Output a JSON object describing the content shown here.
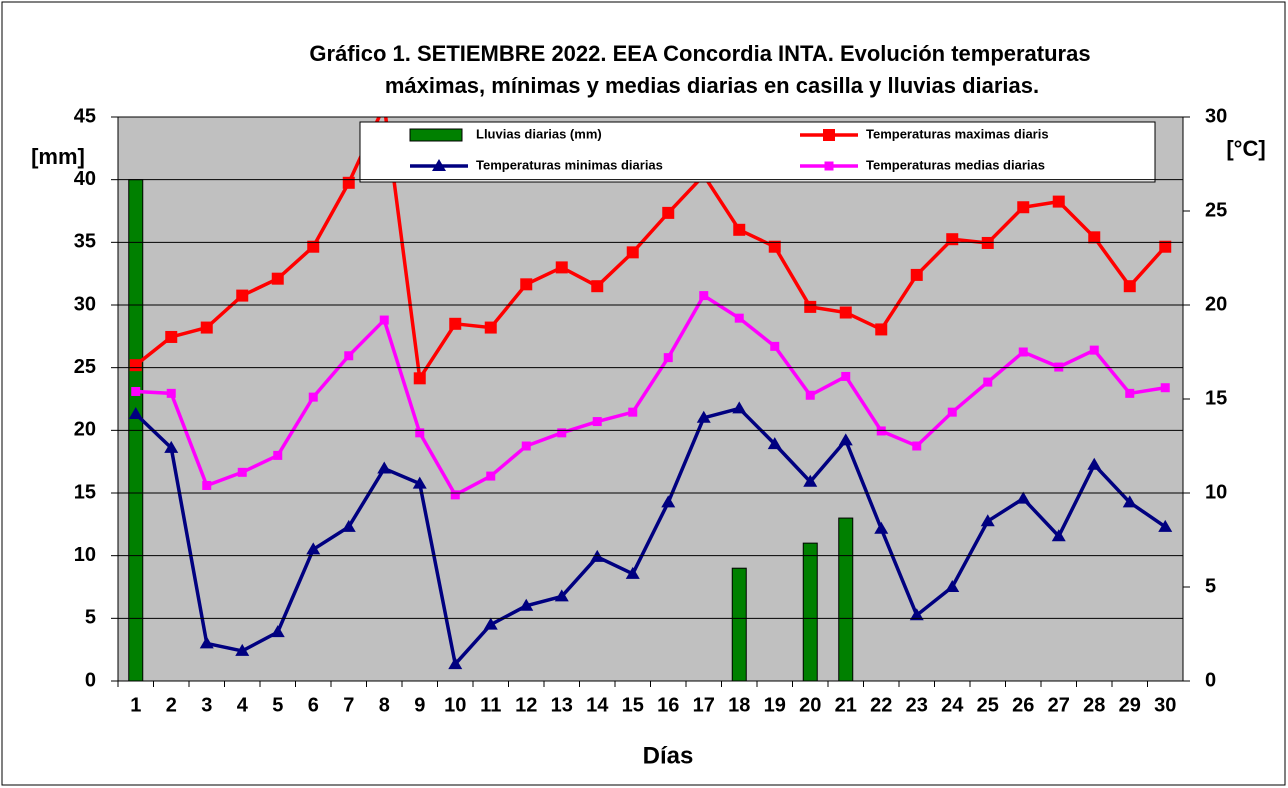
{
  "chart_data": {
    "type": "combo",
    "title": [
      "Gráfico 1. SETIEMBRE 2022. EEA Concordia INTA. Evolución temperaturas",
      "máximas, mínimas y medias diarias en casilla y lluvias diarias."
    ],
    "x_label": "Días",
    "y_label": "[mm]",
    "y2_label": "[°C]",
    "categories": [
      "1",
      "2",
      "3",
      "4",
      "5",
      "6",
      "7",
      "8",
      "9",
      "10",
      "11",
      "12",
      "13",
      "14",
      "15",
      "16",
      "17",
      "18",
      "19",
      "20",
      "21",
      "22",
      "23",
      "24",
      "25",
      "26",
      "27",
      "28",
      "29",
      "30"
    ],
    "ylim": [
      0,
      45
    ],
    "yticks": [
      0,
      5,
      10,
      15,
      20,
      25,
      30,
      35,
      40,
      45
    ],
    "y2lim": [
      0,
      30
    ],
    "y2ticks": [
      0,
      5,
      10,
      15,
      20,
      25,
      30
    ],
    "grid": true,
    "background": "#c0c0c0",
    "legend": "top",
    "series": [
      {
        "name": "Lluvias diarias (mm)",
        "type": "bar",
        "color": "#008000",
        "values": [
          40,
          0,
          0,
          0,
          0,
          0,
          0,
          0,
          0,
          0,
          0,
          0,
          0,
          0,
          0,
          0,
          0,
          9,
          0,
          11,
          13,
          0,
          0,
          0,
          0,
          0,
          0,
          0,
          0,
          0
        ]
      },
      {
        "name": "Temperaturas maximas diaris",
        "type": "line",
        "axis": "y2",
        "color": "#ff0000",
        "marker": "square",
        "values": [
          16.8,
          18.3,
          18.8,
          20.5,
          21.4,
          23.1,
          26.5,
          30.6,
          16.1,
          19.0,
          18.8,
          21.1,
          22.0,
          21.0,
          22.8,
          24.9,
          26.9,
          24.0,
          23.1,
          19.9,
          19.6,
          18.7,
          21.6,
          23.5,
          23.3,
          25.2,
          25.5,
          23.6,
          21.0,
          23.1
        ]
      },
      {
        "name": "Temperaturas minimas diarias",
        "type": "line",
        "axis": "y2",
        "color": "#000080",
        "marker": "triangle",
        "values": [
          14.2,
          12.4,
          2.0,
          1.6,
          2.6,
          7.0,
          8.2,
          11.3,
          10.5,
          0.9,
          3.0,
          4.0,
          4.5,
          6.6,
          5.7,
          9.5,
          14.0,
          14.5,
          12.6,
          10.6,
          12.8,
          8.1,
          3.5,
          5.0,
          8.5,
          9.7,
          7.7,
          11.5,
          9.5,
          8.2
        ]
      },
      {
        "name": "Temperaturas medias diarias",
        "type": "line",
        "axis": "y2",
        "color": "#ff00ff",
        "marker": "small-square",
        "values": [
          15.4,
          15.3,
          10.4,
          11.1,
          12.0,
          15.1,
          17.3,
          19.2,
          13.2,
          9.9,
          10.9,
          12.5,
          13.2,
          13.8,
          14.3,
          17.2,
          20.5,
          19.3,
          17.8,
          15.2,
          16.2,
          13.3,
          12.5,
          14.3,
          15.9,
          17.5,
          16.7,
          17.6,
          15.3,
          15.6
        ]
      }
    ]
  }
}
